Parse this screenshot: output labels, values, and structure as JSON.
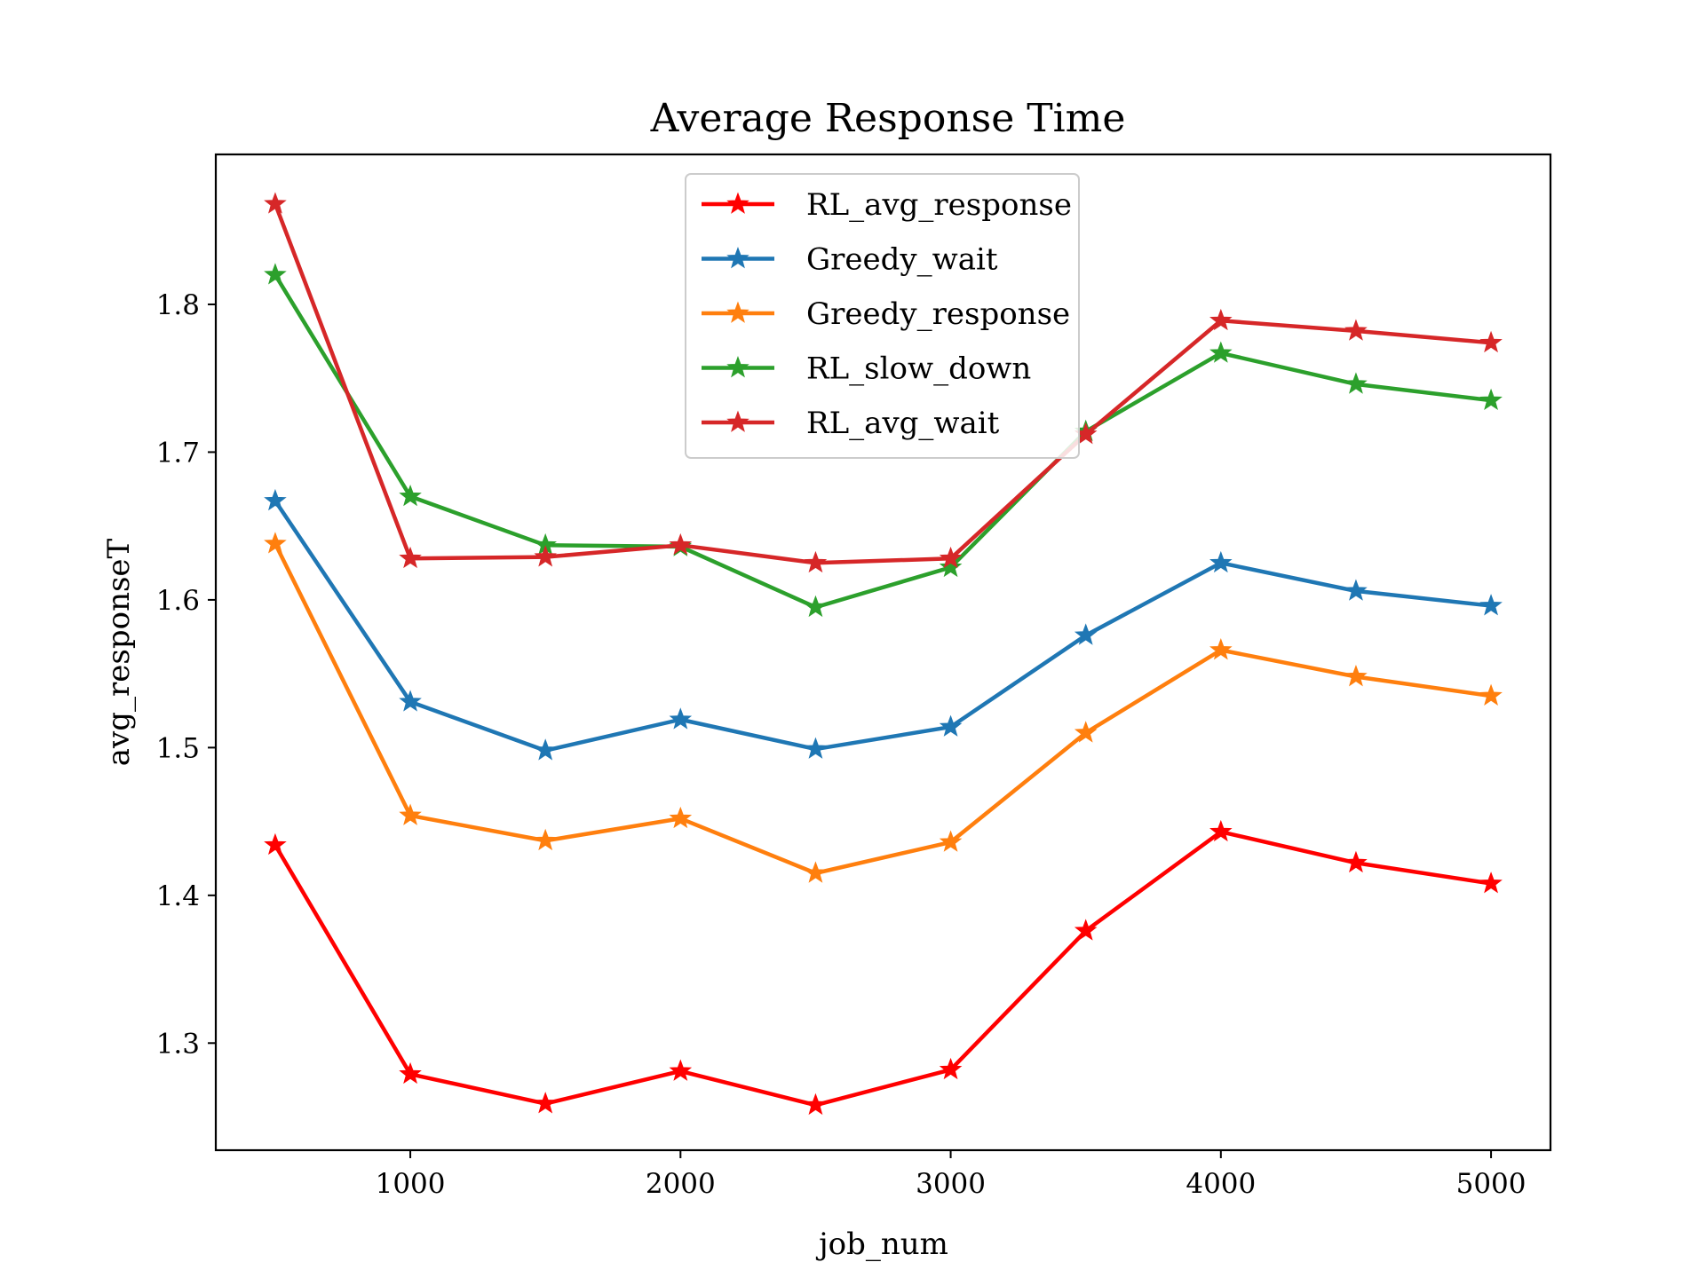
{
  "chart_data": {
    "type": "line",
    "title": "Average Response Time",
    "xlabel": "job_num",
    "ylabel": "avg_responseT",
    "x": [
      500,
      1000,
      1500,
      2000,
      2500,
      3000,
      3500,
      4000,
      4500,
      5000
    ],
    "xlim": [
      280,
      5220
    ],
    "ylim": [
      1.2275,
      1.9015
    ],
    "xticks": [
      1000,
      2000,
      3000,
      4000,
      5000
    ],
    "yticks": [
      1.3,
      1.4,
      1.5,
      1.6,
      1.7,
      1.8
    ],
    "grid": false,
    "legend_position": "upper-center",
    "marker": "star",
    "series": [
      {
        "name": "RL_avg_response",
        "color": "#ff0000",
        "values": [
          1.434,
          1.279,
          1.259,
          1.281,
          1.258,
          1.282,
          1.376,
          1.443,
          1.422,
          1.408
        ]
      },
      {
        "name": "Greedy_wait",
        "color": "#1f77b4",
        "values": [
          1.667,
          1.531,
          1.498,
          1.519,
          1.499,
          1.514,
          1.576,
          1.625,
          1.606,
          1.596
        ]
      },
      {
        "name": "Greedy_response",
        "color": "#ff7f0e",
        "values": [
          1.638,
          1.454,
          1.437,
          1.452,
          1.415,
          1.436,
          1.51,
          1.566,
          1.548,
          1.535
        ]
      },
      {
        "name": "RL_slow_down",
        "color": "#2ca02c",
        "values": [
          1.82,
          1.67,
          1.637,
          1.636,
          1.595,
          1.622,
          1.714,
          1.767,
          1.746,
          1.735
        ]
      },
      {
        "name": "RL_avg_wait",
        "color": "#d62728",
        "values": [
          1.868,
          1.628,
          1.629,
          1.637,
          1.625,
          1.628,
          1.712,
          1.789,
          1.782,
          1.774
        ]
      }
    ]
  }
}
